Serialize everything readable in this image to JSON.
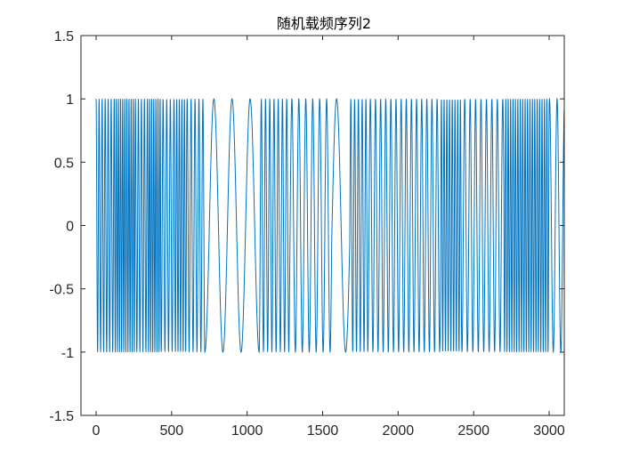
{
  "chart_data": {
    "type": "line",
    "title": "随机载频序列2",
    "xlabel": "",
    "ylabel": "",
    "xlim": [
      -100,
      3100
    ],
    "ylim": [
      -1.5,
      1.5
    ],
    "xticks": [
      0,
      500,
      1000,
      1500,
      2000,
      2500,
      3000
    ],
    "xtick_labels": [
      "0",
      "500",
      "1000",
      "1500",
      "2000",
      "2500",
      "3000"
    ],
    "yticks": [
      -1.5,
      -1,
      -0.5,
      0,
      0.5,
      1,
      1.5
    ],
    "ytick_labels": [
      "-1.5",
      "-1",
      "-0.5",
      "0",
      "0.5",
      "1",
      "1.5"
    ],
    "grid": false,
    "line_color": "#0072BD",
    "series": [
      {
        "amplitude": 1,
        "segments": [
          {
            "x_start": 0,
            "x_end": 120,
            "period": 20
          },
          {
            "x_start": 120,
            "x_end": 260,
            "period": 14
          },
          {
            "x_start": 260,
            "x_end": 340,
            "period": 20
          },
          {
            "x_start": 340,
            "x_end": 430,
            "period": 14
          },
          {
            "x_start": 430,
            "x_end": 520,
            "period": 24
          },
          {
            "x_start": 520,
            "x_end": 600,
            "period": 17
          },
          {
            "x_start": 600,
            "x_end": 720,
            "period": 26
          },
          {
            "x_start": 720,
            "x_end": 1080,
            "period": 120
          },
          {
            "x_start": 1080,
            "x_end": 1280,
            "period": 28
          },
          {
            "x_start": 1280,
            "x_end": 1560,
            "period": 46
          },
          {
            "x_start": 1560,
            "x_end": 1680,
            "period": 120
          },
          {
            "x_start": 1680,
            "x_end": 1800,
            "period": 25
          },
          {
            "x_start": 1800,
            "x_end": 2280,
            "period": 34
          },
          {
            "x_start": 2280,
            "x_end": 2420,
            "period": 18
          },
          {
            "x_start": 2420,
            "x_end": 2700,
            "period": 36
          },
          {
            "x_start": 2700,
            "x_end": 3000,
            "period": 16
          },
          {
            "x_start": 3000,
            "x_end": 3100,
            "period": 50
          }
        ]
      }
    ]
  }
}
